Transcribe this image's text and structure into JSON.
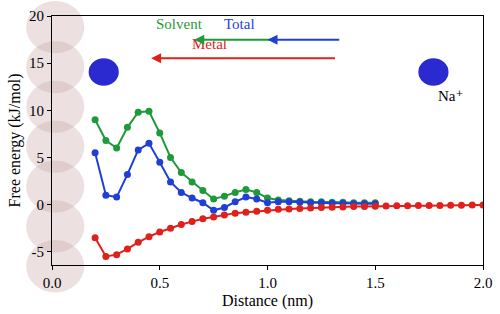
{
  "chart_data": {
    "type": "line",
    "x_label": "Distance (nm)",
    "y_label": "Free energy (kJ/mol)",
    "xlim": [
      0,
      2
    ],
    "ylim": [
      -6.4,
      20
    ],
    "xticks": [
      {
        "value": 0,
        "label": "0.0"
      },
      {
        "value": 0.5,
        "label": "0.5"
      },
      {
        "value": 1,
        "label": "1.0"
      },
      {
        "value": 1.5,
        "label": "1.5"
      },
      {
        "value": 2,
        "label": "2.0"
      }
    ],
    "yticks": [
      -5,
      0,
      5,
      10,
      15,
      20
    ],
    "grid": false,
    "marker": "circle",
    "line_style": "solid",
    "x": [
      0.2,
      0.25,
      0.3,
      0.35,
      0.4,
      0.45,
      0.5,
      0.55,
      0.6,
      0.65,
      0.7,
      0.75,
      0.8,
      0.85,
      0.9,
      0.95,
      1.0,
      1.05,
      1.1,
      1.15,
      1.2,
      1.25,
      1.3,
      1.35,
      1.4,
      1.45,
      1.5,
      1.55,
      1.6,
      1.65,
      1.7,
      1.75,
      1.8,
      1.85,
      1.9,
      1.95,
      2.0
    ],
    "series": [
      {
        "name": "Solvent",
        "color": "#1f9a3a",
        "values": [
          9.0,
          6.8,
          6.0,
          8.2,
          9.8,
          9.9,
          7.6,
          5.0,
          3.4,
          2.4,
          1.5,
          0.6,
          0.9,
          1.3,
          1.6,
          1.3,
          0.7,
          0.5,
          0.4,
          0.35,
          0.3,
          0.3,
          0.25,
          0.25,
          0.2,
          0.2,
          0.2,
          null,
          null,
          null,
          null,
          null,
          null,
          null,
          null,
          null,
          null
        ]
      },
      {
        "name": "Total",
        "color": "#1f3fd6",
        "values": [
          5.5,
          1.0,
          0.8,
          3.2,
          5.8,
          6.5,
          4.5,
          2.4,
          1.3,
          0.7,
          0.2,
          -0.6,
          -0.3,
          0.3,
          0.8,
          0.6,
          0.2,
          0.3,
          0.3,
          0.25,
          0.2,
          0.2,
          0.15,
          0.15,
          0.1,
          0.1,
          0.1,
          null,
          null,
          null,
          null,
          null,
          null,
          null,
          null,
          null,
          null
        ]
      },
      {
        "name": "Metal",
        "color": "#e0201b",
        "values": [
          -3.5,
          -5.5,
          -5.3,
          -4.7,
          -4.0,
          -3.4,
          -2.9,
          -2.5,
          -2.1,
          -1.8,
          -1.5,
          -1.3,
          -1.1,
          -0.9,
          -0.8,
          -0.7,
          -0.6,
          -0.5,
          -0.45,
          -0.4,
          -0.35,
          -0.3,
          -0.27,
          -0.24,
          -0.21,
          -0.19,
          -0.17,
          -0.15,
          -0.13,
          -0.11,
          -0.1,
          -0.09,
          -0.08,
          -0.07,
          -0.06,
          -0.05,
          -0.04
        ]
      }
    ],
    "annotations": [
      {
        "text": "Solvent",
        "x": 0.59,
        "y": 19.2,
        "color": "#1f9a3a"
      },
      {
        "text": "Total",
        "x": 0.87,
        "y": 19.2,
        "color": "#1f3fd6"
      },
      {
        "text": "Metal",
        "x": 0.73,
        "y": 17.0,
        "color": "#e0201b"
      },
      {
        "text": "Na⁺",
        "x": 1.85,
        "y": 11.5,
        "color": "#000000"
      }
    ]
  }
}
